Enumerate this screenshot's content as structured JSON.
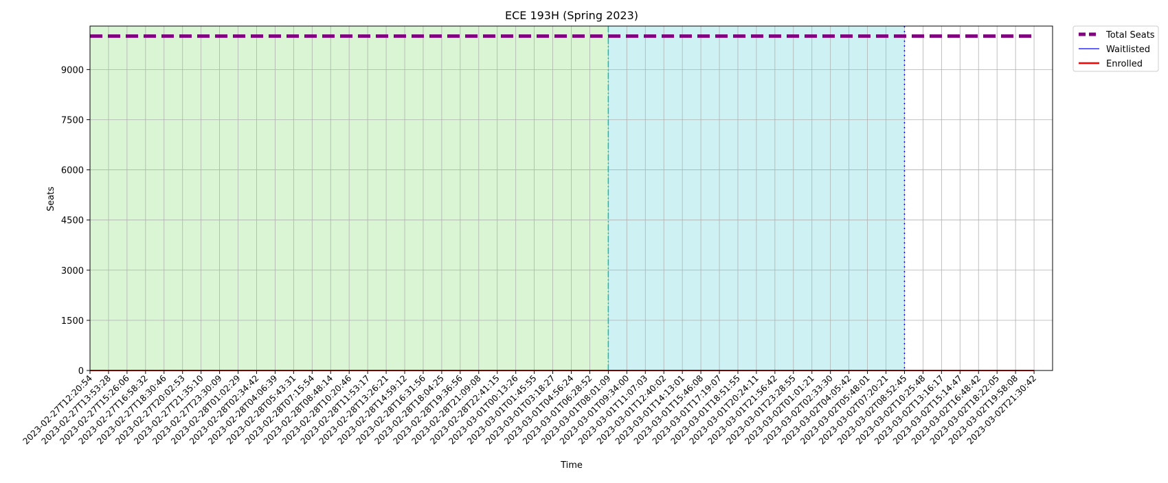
{
  "chart_data": {
    "type": "line",
    "title": "ECE 193H (Spring 2023)",
    "xlabel": "Time",
    "ylabel": "Seats",
    "ylim": [
      0,
      10300
    ],
    "yticks": [
      0,
      1500,
      3000,
      4500,
      6000,
      7500,
      9000
    ],
    "grid": true,
    "legend_position": "outside top-right",
    "categories": [
      "2023-02-27T12:20:54",
      "2023-02-27T13:53:28",
      "2023-02-27T15:26:06",
      "2023-02-27T16:58:32",
      "2023-02-27T18:30:46",
      "2023-02-27T20:02:53",
      "2023-02-27T21:35:10",
      "2023-02-27T23:30:09",
      "2023-02-28T01:02:29",
      "2023-02-28T02:34:42",
      "2023-02-28T04:06:39",
      "2023-02-28T05:43:31",
      "2023-02-28T07:15:54",
      "2023-02-28T08:48:14",
      "2023-02-28T10:20:46",
      "2023-02-28T11:53:17",
      "2023-02-28T13:26:21",
      "2023-02-28T14:59:12",
      "2023-02-28T16:31:56",
      "2023-02-28T18:04:25",
      "2023-02-28T19:36:56",
      "2023-02-28T21:09:08",
      "2023-02-28T22:41:15",
      "2023-03-01T00:13:26",
      "2023-03-01T01:45:55",
      "2023-03-01T03:18:27",
      "2023-03-01T04:56:24",
      "2023-03-01T06:28:52",
      "2023-03-01T08:01:09",
      "2023-03-01T09:34:00",
      "2023-03-01T11:07:03",
      "2023-03-01T12:40:02",
      "2023-03-01T14:13:01",
      "2023-03-01T15:46:08",
      "2023-03-01T17:19:07",
      "2023-03-01T18:51:55",
      "2023-03-01T20:24:11",
      "2023-03-01T21:56:42",
      "2023-03-01T23:28:55",
      "2023-03-02T01:01:21",
      "2023-03-02T02:33:30",
      "2023-03-02T04:05:42",
      "2023-03-02T05:48:01",
      "2023-03-02T07:20:21",
      "2023-03-02T08:52:45",
      "2023-03-02T10:25:48",
      "2023-03-02T13:16:17",
      "2023-03-02T15:14:47",
      "2023-03-02T16:48:42",
      "2023-03-02T18:22:05",
      "2023-03-02T19:58:08",
      "2023-03-02T21:30:42"
    ],
    "series": [
      {
        "name": "Total Seats",
        "color": "#800080",
        "style": "dashed",
        "value": 9999
      },
      {
        "name": "Waitlisted",
        "color": "#0000ff",
        "style": "solid",
        "value": 0
      },
      {
        "name": "Enrolled",
        "color": "#ff0000",
        "style": "solid",
        "value": 0
      }
    ],
    "shaded_regions": [
      {
        "from": "2023-02-27T12:20:54",
        "to": "2023-03-01T08:01:09",
        "color": "#d9f5d3"
      },
      {
        "from": "2023-03-01T08:01:09",
        "to": "2023-03-02T08:52:45",
        "color": "#cef1f4"
      }
    ],
    "vertical_markers": [
      {
        "at": "2023-03-01T08:01:09",
        "color": "#00c0c0",
        "style": "dashdot"
      },
      {
        "at": "2023-03-02T08:52:45",
        "color": "#0000ff",
        "style": "dotted"
      }
    ]
  }
}
